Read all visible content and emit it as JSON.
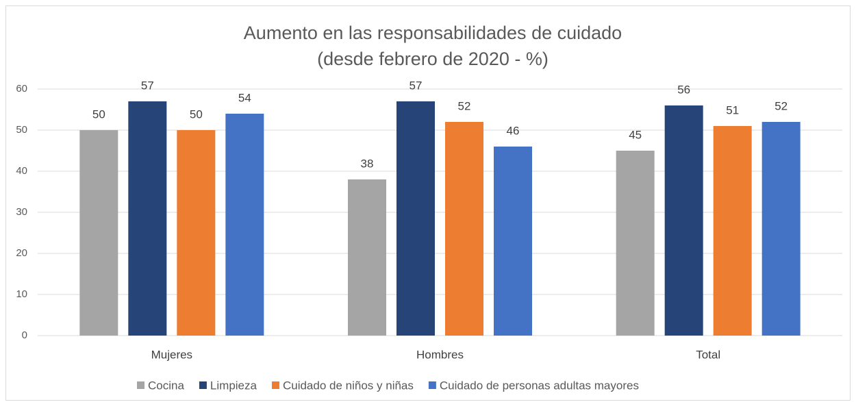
{
  "chart_data": {
    "type": "bar",
    "title": [
      "Aumento en las responsabilidades de cuidado",
      "(desde febrero de 2020 - %)"
    ],
    "categories": [
      "Mujeres",
      "Hombres",
      "Total"
    ],
    "series": [
      {
        "name": "Cocina",
        "color": "#a5a5a5",
        "values": [
          50,
          38,
          45
        ]
      },
      {
        "name": "Limpieza",
        "color": "#264478",
        "values": [
          57,
          57,
          56
        ]
      },
      {
        "name": "Cuidado de niños y niñas",
        "color": "#ed7d31",
        "values": [
          50,
          52,
          51
        ]
      },
      {
        "name": "Cuidado de personas adultas mayores",
        "color": "#4472c4",
        "values": [
          54,
          46,
          52
        ]
      }
    ],
    "ylim": [
      0,
      60
    ],
    "yticks": [
      0,
      10,
      20,
      30,
      40,
      50,
      60
    ],
    "grid": true,
    "legend": "bottom"
  }
}
